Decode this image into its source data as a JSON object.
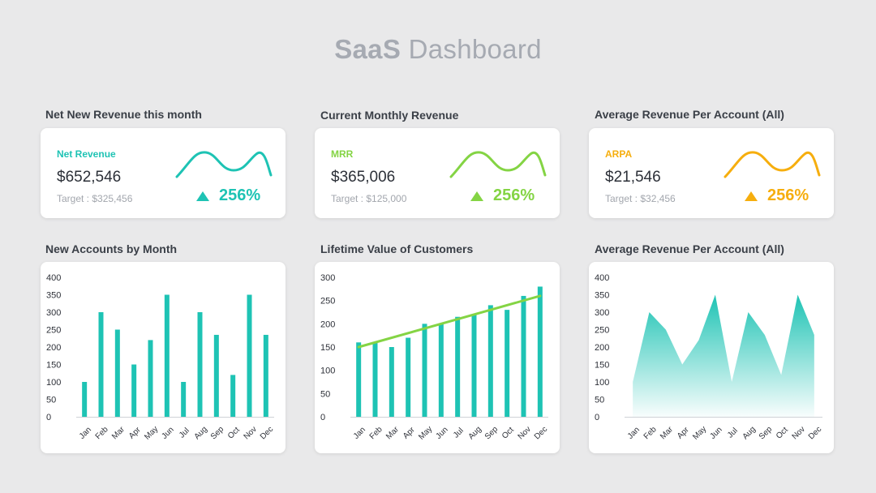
{
  "title": {
    "bold": "SaaS",
    "light": " Dashboard"
  },
  "colors": {
    "teal": "#1ec3b4",
    "green": "#84d444",
    "orange": "#f6ae0e"
  },
  "kpis": [
    {
      "section_title": "Net New Revenue this month",
      "label": "Net Revenue",
      "value": "$652,546",
      "target": "Target  : $325,456",
      "change": "256%",
      "color": "#1ec3b4"
    },
    {
      "section_title": "Current Monthly Revenue",
      "label": "MRR",
      "value": "$365,006",
      "target": "Target  : $125,000",
      "change": "256%",
      "color": "#84d444"
    },
    {
      "section_title": "Average Revenue Per Account (All)",
      "label": "ARPA",
      "value": "$21,546",
      "target": "Target  : $32,456",
      "change": "256%",
      "color": "#f6ae0e"
    }
  ],
  "chart_titles": [
    "New Accounts by Month",
    "Lifetime Value of Customers",
    "Average Revenue Per Account (All)"
  ],
  "chart_data": [
    {
      "type": "bar",
      "title": "New Accounts by Month",
      "categories": [
        "Jan",
        "Feb",
        "Mar",
        "Apr",
        "May",
        "Jun",
        "Jul",
        "Aug",
        "Sep",
        "Oct",
        "Nov",
        "Dec"
      ],
      "values": [
        100,
        300,
        250,
        150,
        220,
        350,
        100,
        300,
        235,
        120,
        350,
        235
      ],
      "ylim": [
        0,
        400
      ],
      "yticks": [
        0,
        50,
        100,
        150,
        200,
        250,
        300,
        350,
        400
      ],
      "color": "#1ec3b4"
    },
    {
      "type": "bar",
      "title": "Lifetime Value of Customers",
      "categories": [
        "Jan",
        "Feb",
        "Mar",
        "Apr",
        "May",
        "Jun",
        "Jul",
        "Aug",
        "Sep",
        "Oct",
        "Nov",
        "Dec"
      ],
      "values": [
        160,
        160,
        150,
        170,
        200,
        200,
        215,
        220,
        240,
        230,
        260,
        280
      ],
      "trend": [
        150,
        260
      ],
      "ylim": [
        0,
        300
      ],
      "yticks": [
        0,
        50,
        100,
        150,
        200,
        250,
        300
      ],
      "color": "#1ec3b4",
      "trend_color": "#84d444"
    },
    {
      "type": "area",
      "title": "Average Revenue Per Account (All)",
      "categories": [
        "Jan",
        "Feb",
        "Mar",
        "Apr",
        "May",
        "Jun",
        "Jul",
        "Aug",
        "Sep",
        "Oct",
        "Nov",
        "Dec"
      ],
      "values": [
        100,
        300,
        250,
        150,
        220,
        350,
        100,
        300,
        235,
        120,
        350,
        235
      ],
      "ylim": [
        0,
        400
      ],
      "yticks": [
        0,
        50,
        100,
        150,
        200,
        250,
        300,
        350,
        400
      ],
      "color": "#1ec3b4"
    }
  ]
}
